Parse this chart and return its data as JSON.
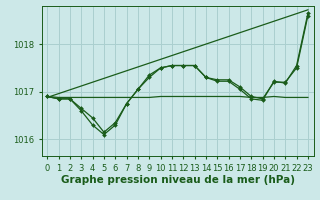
{
  "background_color": "#cce8e8",
  "grid_color": "#aacfcf",
  "line_color": "#1a5c1a",
  "xlabel": "Graphe pression niveau de la mer (hPa)",
  "xlabel_fontsize": 7.5,
  "tick_fontsize": 6,
  "yticks": [
    1016,
    1017,
    1018
  ],
  "ylim": [
    1015.65,
    1018.8
  ],
  "xlim": [
    -0.5,
    23.5
  ],
  "xticks": [
    0,
    1,
    2,
    3,
    4,
    5,
    6,
    7,
    8,
    9,
    10,
    11,
    12,
    13,
    14,
    15,
    16,
    17,
    18,
    19,
    20,
    21,
    22,
    23
  ],
  "series_flat": {
    "x": [
      0,
      1,
      2,
      3,
      4,
      5,
      6,
      7,
      8,
      9,
      10,
      11,
      12,
      13,
      14,
      15,
      16,
      17,
      18,
      19,
      20,
      21,
      22,
      23
    ],
    "y": [
      1016.9,
      1016.88,
      1016.88,
      1016.88,
      1016.88,
      1016.88,
      1016.88,
      1016.88,
      1016.88,
      1016.88,
      1016.9,
      1016.9,
      1016.9,
      1016.9,
      1016.9,
      1016.9,
      1016.9,
      1016.9,
      1016.88,
      1016.88,
      1016.9,
      1016.88,
      1016.88,
      1016.88
    ]
  },
  "series_main1": {
    "x": [
      0,
      1,
      2,
      3,
      4,
      5,
      6,
      7,
      8,
      9,
      10,
      11,
      12,
      13,
      14,
      15,
      16,
      17,
      18,
      19,
      20,
      21,
      22,
      23
    ],
    "y": [
      1016.9,
      1016.85,
      1016.85,
      1016.65,
      1016.45,
      1016.15,
      1016.35,
      1016.75,
      1017.05,
      1017.3,
      1017.5,
      1017.55,
      1017.55,
      1017.55,
      1017.3,
      1017.25,
      1017.25,
      1017.1,
      1016.9,
      1016.85,
      1017.2,
      1017.2,
      1017.5,
      1018.6
    ]
  },
  "series_main2": {
    "x": [
      0,
      1,
      2,
      3,
      4,
      5,
      6,
      7,
      8,
      9,
      10,
      11,
      12,
      13,
      14,
      15,
      16,
      17,
      18,
      19,
      20,
      21,
      22,
      23
    ],
    "y": [
      1016.9,
      1016.85,
      1016.85,
      1016.6,
      1016.3,
      1016.1,
      1016.3,
      1016.75,
      1017.05,
      1017.35,
      1017.5,
      1017.55,
      1017.55,
      1017.55,
      1017.3,
      1017.22,
      1017.22,
      1017.05,
      1016.85,
      1016.82,
      1017.22,
      1017.18,
      1017.55,
      1018.65
    ]
  },
  "series_trend": {
    "x": [
      0,
      23
    ],
    "y": [
      1016.88,
      1018.72
    ]
  },
  "markersize": 2.0,
  "linewidth": 0.9
}
